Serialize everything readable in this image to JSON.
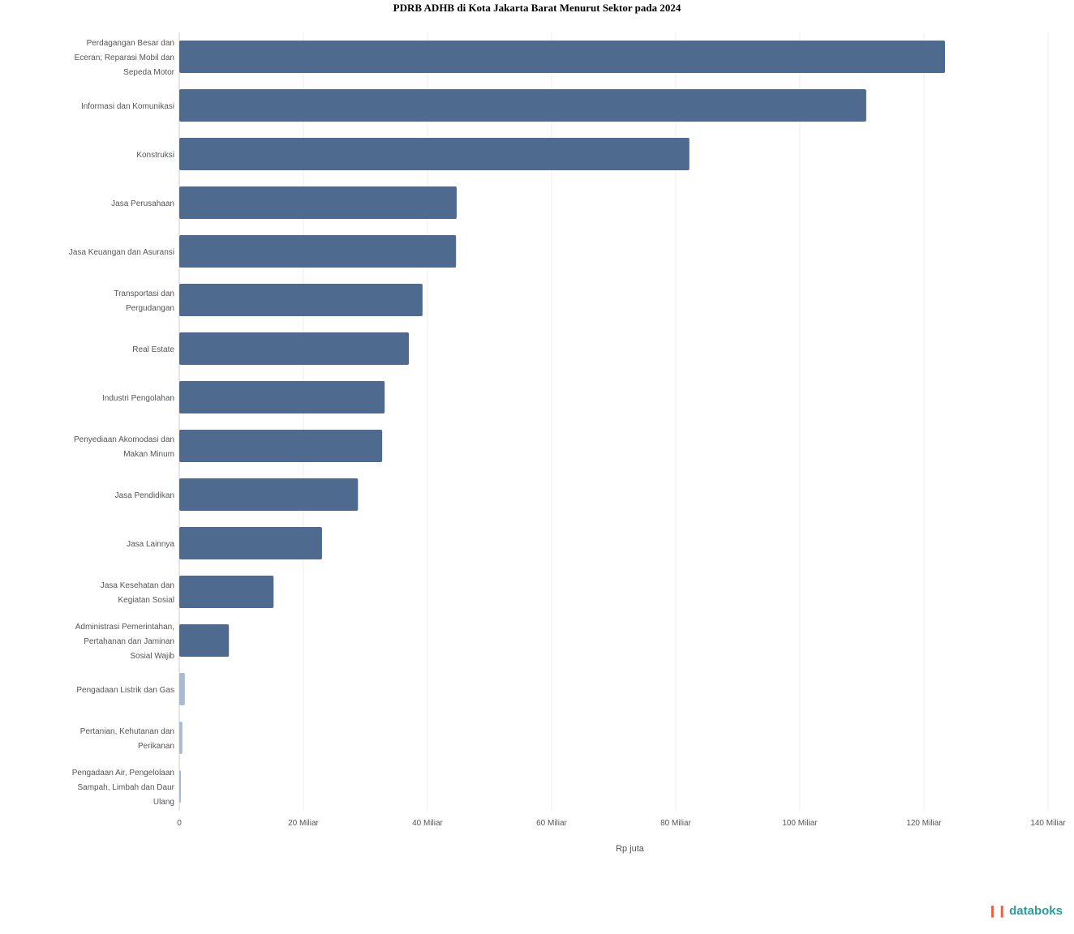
{
  "chart_data": {
    "type": "bar",
    "orientation": "horizontal",
    "title": "PDRB ADHB di Kota Jakarta Barat Menurut Sektor pada 2024",
    "xlabel": "Rp juta",
    "ylabel": "",
    "xlim": [
      0,
      140
    ],
    "x_ticks": [
      "0",
      "20 Miliar",
      "40 Miliar",
      "60 Miliar",
      "80 Miliar",
      "100 Miliar",
      "120 Miliar",
      "140 Miliar"
    ],
    "grid": true,
    "bar_color": "#4f6a8f",
    "categories": [
      "Perdagangan Besar dan Eceran; Reparasi Mobil dan Sepeda Motor",
      "Informasi dan Komunikasi",
      "Konstruksi",
      "Jasa Perusahaan",
      "Jasa Keuangan dan Asuransi",
      "Transportasi dan Pergudangan",
      "Real Estate",
      "Industri Pengolahan",
      "Penyediaan Akomodasi dan Makan Minum",
      "Jasa Pendidikan",
      "Jasa Lainnya",
      "Jasa Kesehatan dan Kegiatan Sosial",
      "Administrasi Pemerintahan, Pertahanan dan Jaminan Sosial Wajib",
      "Pengadaan Listrik dan Gas",
      "Pertanian, Kehutanan dan Perikanan",
      "Pengadaan Air, Pengelolaan Sampah, Limbah dan Daur Ulang"
    ],
    "values": [
      123.4,
      110.7,
      82.2,
      44.7,
      44.6,
      39.2,
      37.0,
      33.1,
      32.7,
      28.8,
      23.0,
      15.2,
      8.0,
      0.9,
      0.5,
      0.1
    ]
  },
  "branding": {
    "logo": "databoks"
  }
}
